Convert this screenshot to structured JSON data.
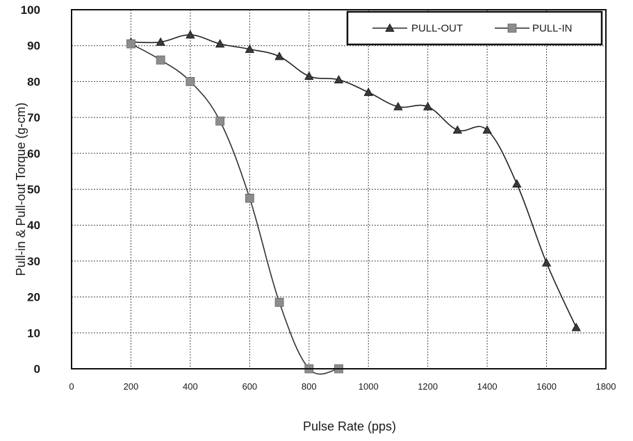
{
  "chart_data": {
    "type": "line",
    "title": "",
    "xlabel": "Pulse Rate (pps)",
    "ylabel": "Pull-in & Pull-out Torque (g-cm)",
    "xlim": [
      0,
      1800
    ],
    "ylim": [
      0,
      100
    ],
    "xticks": [
      0,
      200,
      400,
      600,
      800,
      1000,
      1200,
      1400,
      1600,
      1800
    ],
    "yticks": [
      0,
      10,
      20,
      30,
      40,
      50,
      60,
      70,
      80,
      90,
      100
    ],
    "grid": true,
    "legend_position": "top-right",
    "series": [
      {
        "name": "PULL-OUT",
        "marker": "triangle",
        "color": "#3a3a3a",
        "x": [
          200,
          300,
          400,
          500,
          600,
          700,
          800,
          900,
          1000,
          1100,
          1200,
          1300,
          1400,
          1500,
          1600,
          1700
        ],
        "y": [
          91,
          91,
          93,
          90.5,
          89,
          87,
          81.5,
          80.5,
          77,
          73,
          73,
          66.5,
          66.5,
          51.5,
          29.5,
          11.5
        ]
      },
      {
        "name": "PULL-IN",
        "marker": "square",
        "color": "#8c8c8c",
        "x": [
          200,
          300,
          400,
          500,
          600,
          700,
          800,
          900
        ],
        "y": [
          90.5,
          86,
          80,
          69,
          47.5,
          18.5,
          0,
          0
        ]
      }
    ]
  }
}
